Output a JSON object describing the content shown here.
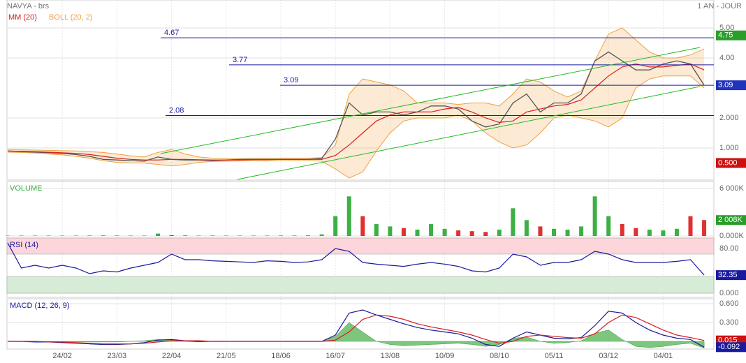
{
  "header": {
    "title": "NAVYA - brs",
    "period": "1 AN - JOUR"
  },
  "chart_data": [
    {
      "type": "line",
      "title": null,
      "values": [
        0.9,
        0.88,
        0.86,
        0.84,
        0.82,
        0.78,
        0.72,
        0.62,
        0.6,
        0.58,
        0.56,
        0.7,
        0.62,
        0.6,
        0.6,
        0.58,
        0.6,
        0.62,
        0.62,
        0.62,
        0.62,
        0.62,
        0.62,
        0.65,
        1.3,
        2.5,
        2.1,
        2.2,
        2.2,
        2.1,
        2.2,
        2.4,
        2.4,
        2.3,
        1.9,
        1.7,
        1.8,
        2.5,
        2.8,
        2.2,
        2.5,
        2.5,
        2.8,
        3.9,
        4.2,
        3.9,
        3.6,
        3.6,
        3.8,
        3.9,
        3.8,
        3.09
      ],
      "color": "#555555",
      "series": [
        {
          "name": "MM (20)",
          "color": "#d62020",
          "values": [
            0.9,
            0.89,
            0.88,
            0.86,
            0.84,
            0.82,
            0.78,
            0.72,
            0.66,
            0.62,
            0.6,
            0.6,
            0.62,
            0.62,
            0.61,
            0.6,
            0.6,
            0.6,
            0.61,
            0.61,
            0.62,
            0.62,
            0.62,
            0.62,
            0.75,
            1.1,
            1.5,
            1.9,
            2.1,
            2.2,
            2.2,
            2.2,
            2.3,
            2.35,
            2.2,
            2.0,
            1.85,
            1.9,
            2.2,
            2.3,
            2.4,
            2.45,
            2.6,
            3.0,
            3.4,
            3.7,
            3.8,
            3.7,
            3.7,
            3.75,
            3.8,
            3.6
          ]
        },
        {
          "name": "BOLL (20, 2)",
          "color": "#f0a040",
          "upper": [
            0.95,
            0.94,
            0.93,
            0.92,
            0.91,
            0.9,
            0.88,
            0.85,
            0.8,
            0.74,
            0.7,
            0.85,
            0.95,
            0.8,
            0.7,
            0.66,
            0.64,
            0.64,
            0.65,
            0.65,
            0.66,
            0.66,
            0.66,
            0.68,
            1.1,
            2.8,
            3.3,
            3.2,
            3.1,
            2.9,
            2.5,
            2.5,
            2.5,
            2.45,
            2.5,
            2.5,
            2.4,
            2.8,
            3.3,
            3.2,
            2.9,
            2.7,
            2.9,
            3.9,
            4.8,
            5.0,
            4.6,
            4.2,
            4.0,
            4.0,
            4.1,
            4.3
          ],
          "lower": [
            0.86,
            0.85,
            0.83,
            0.8,
            0.77,
            0.72,
            0.66,
            0.58,
            0.52,
            0.5,
            0.5,
            0.45,
            0.4,
            0.45,
            0.52,
            0.55,
            0.56,
            0.57,
            0.58,
            0.58,
            0.58,
            0.58,
            0.58,
            0.56,
            0.3,
            0.0,
            0.2,
            0.9,
            1.5,
            1.9,
            2.0,
            2.0,
            2.0,
            2.1,
            1.9,
            1.5,
            1.2,
            1.0,
            1.1,
            1.5,
            2.0,
            2.1,
            2.0,
            1.9,
            1.7,
            2.0,
            3.0,
            3.3,
            3.4,
            3.4,
            3.4,
            3.0
          ]
        }
      ],
      "levels": [
        4.67,
        3.77,
        3.09,
        2.08
      ],
      "ylim": [
        -0.07,
        5.93
      ],
      "yticks": [
        {
          "value": 5,
          "label": "5.00"
        },
        {
          "value": 4,
          "label": "4.00"
        },
        {
          "value": 2,
          "label": "2.000"
        },
        {
          "value": 1,
          "label": "1.000"
        }
      ],
      "last_labels": [
        {
          "value": 4.75,
          "color": "#2a9d2a"
        },
        {
          "value": 3.09,
          "color": "#2233bb"
        },
        {
          "value": 0.5,
          "label": "0.500",
          "color": "#cc1111"
        }
      ],
      "grid": true
    },
    {
      "type": "bar",
      "title": "VOLUME",
      "values": [
        40,
        40,
        40,
        40,
        40,
        40,
        50,
        60,
        50,
        40,
        40,
        300,
        100,
        60,
        50,
        50,
        50,
        50,
        50,
        50,
        60,
        60,
        80,
        200,
        2500,
        5000,
        2500,
        1500,
        1200,
        1000,
        800,
        1500,
        900,
        700,
        600,
        500,
        800,
        3500,
        2000,
        1200,
        900,
        800,
        1200,
        5000,
        2500,
        1500,
        1000,
        800,
        700,
        900,
        2500,
        2008
      ],
      "up_color": "#3cb043",
      "down_color": "#e03030",
      "ylim": [
        -265,
        6882
      ],
      "yticks": [
        {
          "value": 6000,
          "label": "6 000K"
        },
        {
          "value": 0,
          "label": "0.000K"
        }
      ],
      "last_labels": [
        {
          "value": 2008,
          "label": "2 008K",
          "color": "#2a9d2a"
        }
      ],
      "grid": true
    },
    {
      "type": "line",
      "title": "RSI (14)",
      "series": [
        {
          "color": "#1a1aa0",
          "values": [
            90,
            45,
            50,
            45,
            50,
            45,
            35,
            40,
            38,
            45,
            50,
            55,
            70,
            60,
            60,
            58,
            57,
            56,
            55,
            58,
            57,
            55,
            56,
            60,
            80,
            75,
            55,
            52,
            50,
            48,
            52,
            55,
            52,
            48,
            40,
            38,
            45,
            70,
            65,
            50,
            55,
            55,
            60,
            75,
            70,
            60,
            55,
            55,
            55,
            57,
            60,
            32.35
          ]
        }
      ],
      "bands": [
        {
          "from": 70,
          "to": 100,
          "color": "#fcd6da"
        },
        {
          "from": 0,
          "to": 30,
          "color": "#d6ecd6"
        }
      ],
      "ylim": [
        -7.5,
        98.75
      ],
      "yticks": [
        {
          "value": 80,
          "label": "80.00"
        },
        {
          "value": 0,
          "label": "0.000"
        }
      ],
      "last_labels": [
        {
          "value": 32.35,
          "color": "#1a1aa0"
        }
      ],
      "grid": true
    },
    {
      "type": "macd",
      "title": "MACD (12, 26, 9)",
      "categories": [
        null,
        null,
        null,
        null,
        "24/02",
        null,
        null,
        null,
        "23/03",
        null,
        null,
        null,
        "22/04",
        null,
        null,
        null,
        "21/05",
        null,
        null,
        null,
        "18/06",
        null,
        null,
        null,
        "16/07",
        null,
        null,
        null,
        "13/08",
        null,
        null,
        null,
        "10/09",
        null,
        null,
        null,
        "08/10",
        null,
        null,
        null,
        "05/11",
        null,
        null,
        null,
        "03/12",
        null,
        null,
        null,
        "04/01",
        null,
        null,
        null
      ],
      "series": [
        {
          "color": "#1a1aa0",
          "values": [
            0,
            0,
            -0.01,
            -0.01,
            -0.02,
            -0.03,
            -0.04,
            -0.05,
            -0.05,
            -0.04,
            -0.02,
            0.02,
            0.03,
            0.01,
            0,
            0,
            0,
            0,
            0,
            0,
            0,
            0,
            0,
            0,
            0.1,
            0.45,
            0.5,
            0.42,
            0.35,
            0.28,
            0.22,
            0.18,
            0.15,
            0.12,
            0.05,
            -0.05,
            -0.08,
            0.05,
            0.15,
            0.1,
            0.05,
            0.04,
            0.06,
            0.25,
            0.48,
            0.45,
            0.3,
            0.18,
            0.1,
            0.05,
            0.03,
            -0.092
          ]
        },
        {
          "color": "#d62020",
          "values": [
            0,
            0,
            0,
            -0.01,
            -0.01,
            -0.02,
            -0.03,
            -0.04,
            -0.04,
            -0.04,
            -0.03,
            -0.01,
            0.01,
            0.01,
            0.01,
            0,
            0,
            0,
            0,
            0,
            0,
            0,
            0,
            0,
            0.02,
            0.15,
            0.35,
            0.42,
            0.4,
            0.35,
            0.28,
            0.23,
            0.19,
            0.15,
            0.1,
            0.03,
            -0.03,
            0,
            0.08,
            0.1,
            0.08,
            0.06,
            0.05,
            0.12,
            0.3,
            0.42,
            0.38,
            0.28,
            0.18,
            0.1,
            0.06,
            0.015
          ]
        }
      ],
      "histogram": {
        "color": "#5cb85c",
        "values": [
          0,
          0,
          -0.01,
          0,
          -0.01,
          -0.01,
          -0.01,
          -0.01,
          -0.01,
          0,
          0.01,
          0.03,
          0.02,
          0,
          -0.01,
          0,
          0,
          0,
          0,
          0,
          0,
          0,
          0,
          0,
          0.08,
          0.3,
          0.15,
          0,
          -0.05,
          -0.07,
          -0.06,
          -0.05,
          -0.04,
          -0.03,
          -0.05,
          -0.08,
          -0.05,
          0.05,
          0.07,
          0,
          -0.03,
          -0.02,
          0.01,
          0.13,
          0.18,
          0.03,
          -0.08,
          -0.1,
          -0.08,
          -0.05,
          -0.03,
          -0.107
        ]
      },
      "ylim": [
        -0.122,
        0.678
      ],
      "yticks": [
        {
          "value": 0.6,
          "label": "0.600"
        },
        {
          "value": 0.3,
          "label": "0.300"
        }
      ],
      "last_labels": [
        {
          "value": 0.015,
          "color": "#cc1111"
        },
        {
          "value": -0.092,
          "color": "#1a1aa0"
        }
      ],
      "grid": true
    }
  ]
}
